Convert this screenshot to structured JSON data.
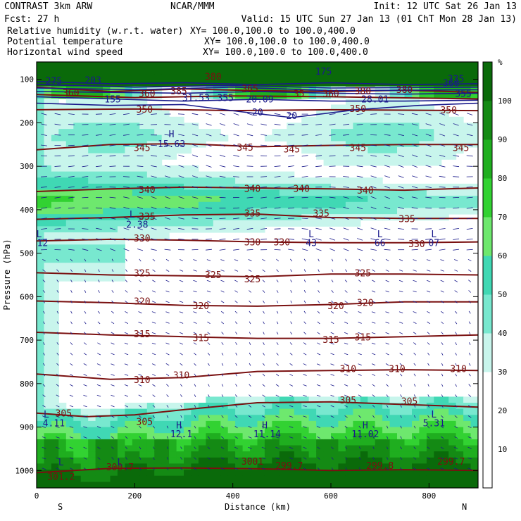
{
  "header": {
    "model": "CONTRAST  3km ARW",
    "center": "NCAR/MMM",
    "init": "Init: 12 UTC Sat 26 Jan 13",
    "fcst": "Fcst:   27 h",
    "valid": "Valid: 15 UTC Sun 27 Jan 13 (01 ChT Mon 28 Jan 13)",
    "fields": [
      {
        "name": "Relative humidity (w.r.t. water)",
        "xy": "XY= 100.0,100.0 to 100.0,400.0",
        "color": "#000000"
      },
      {
        "name": "Potential temperature",
        "xy": "XY= 100.0,100.0 to 100.0,400.0",
        "color": "#8b1a1a"
      },
      {
        "name": "Horizontal wind speed",
        "xy": "XY= 100.0,100.0 to 100.0,400.0",
        "color": "#1a1a8b"
      }
    ]
  },
  "colors": {
    "theta": "#7a1010",
    "wind": "#1a1a8b",
    "rh": [
      "#ffffff",
      "#ffffff",
      "#ffffff",
      "#c8f5ec",
      "#78e8cf",
      "#40d8b4",
      "#6ee86e",
      "#32d232",
      "#1fae1f",
      "#148a14",
      "#0a6a0a"
    ]
  },
  "colorbar": {
    "unit": "%",
    "ticks": [
      "10",
      "20",
      "30",
      "40",
      "50",
      "60",
      "70",
      "80",
      "90",
      "100"
    ]
  },
  "chart_data": {
    "type": "heatmap",
    "title": "",
    "xlabel": "Distance (km)",
    "ylabel": "Pressure (hPa)",
    "xlim": [
      0,
      900
    ],
    "ylim": [
      1040,
      60
    ],
    "x_ticks": [
      "0",
      "200",
      "400",
      "600",
      "800"
    ],
    "x_tick_values": [
      0,
      200,
      400,
      600,
      800
    ],
    "y_ticks": [
      "100",
      "200",
      "300",
      "400",
      "500",
      "600",
      "700",
      "800",
      "900",
      "1000"
    ],
    "y_tick_values": [
      100,
      200,
      300,
      400,
      500,
      600,
      700,
      800,
      900,
      1000
    ],
    "end_labels": {
      "left": "S",
      "right": "N"
    },
    "theta_contours": [
      {
        "level": "360",
        "points": [
          [
            0,
            118
          ],
          [
            150,
            128
          ],
          [
            300,
            122
          ],
          [
            450,
            126
          ],
          [
            600,
            128
          ],
          [
            750,
            125
          ],
          [
            900,
            130
          ]
        ]
      },
      {
        "level": "355",
        "points": [
          [
            0,
            135
          ],
          [
            200,
            142
          ],
          [
            400,
            138
          ],
          [
            600,
            140
          ],
          [
            900,
            145
          ]
        ]
      },
      {
        "level": "350",
        "points": [
          [
            0,
            170
          ],
          [
            200,
            168
          ],
          [
            400,
            172
          ],
          [
            600,
            170
          ],
          [
            900,
            172
          ]
        ]
      },
      {
        "level": "345",
        "points": [
          [
            0,
            262
          ],
          [
            150,
            250
          ],
          [
            300,
            248
          ],
          [
            450,
            255
          ],
          [
            600,
            252
          ],
          [
            750,
            250
          ],
          [
            900,
            250
          ]
        ]
      },
      {
        "level": "340",
        "points": [
          [
            0,
            358
          ],
          [
            150,
            352
          ],
          [
            300,
            348
          ],
          [
            450,
            350
          ],
          [
            600,
            352
          ],
          [
            750,
            355
          ],
          [
            900,
            350
          ]
        ]
      },
      {
        "level": "335",
        "points": [
          [
            0,
            422
          ],
          [
            150,
            418
          ],
          [
            300,
            412
          ],
          [
            450,
            410
          ],
          [
            600,
            418
          ],
          [
            750,
            420
          ],
          [
            900,
            420
          ]
        ]
      },
      {
        "level": "330",
        "points": [
          [
            0,
            472
          ],
          [
            150,
            468
          ],
          [
            300,
            470
          ],
          [
            450,
            474
          ],
          [
            600,
            476
          ],
          [
            750,
            476
          ],
          [
            900,
            474
          ]
        ]
      },
      {
        "level": "325",
        "points": [
          [
            0,
            545
          ],
          [
            150,
            550
          ],
          [
            300,
            552
          ],
          [
            450,
            554
          ],
          [
            600,
            548
          ],
          [
            750,
            548
          ],
          [
            900,
            550
          ]
        ]
      },
      {
        "level": "320",
        "points": [
          [
            0,
            610
          ],
          [
            150,
            614
          ],
          [
            300,
            620
          ],
          [
            450,
            622
          ],
          [
            600,
            618
          ],
          [
            750,
            612
          ],
          [
            900,
            612
          ]
        ]
      },
      {
        "level": "315",
        "points": [
          [
            0,
            682
          ],
          [
            150,
            688
          ],
          [
            300,
            692
          ],
          [
            450,
            696
          ],
          [
            600,
            696
          ],
          [
            750,
            692
          ],
          [
            900,
            688
          ]
        ]
      },
      {
        "level": "310",
        "points": [
          [
            0,
            778
          ],
          [
            150,
            790
          ],
          [
            300,
            786
          ],
          [
            450,
            772
          ],
          [
            600,
            770
          ],
          [
            750,
            768
          ],
          [
            900,
            770
          ]
        ]
      },
      {
        "level": "305",
        "points": [
          [
            0,
            868
          ],
          [
            100,
            876
          ],
          [
            200,
            872
          ],
          [
            300,
            860
          ],
          [
            450,
            844
          ],
          [
            600,
            842
          ],
          [
            750,
            848
          ],
          [
            900,
            854
          ]
        ]
      },
      {
        "level": "300",
        "points": [
          [
            0,
            1005
          ],
          [
            150,
            995
          ],
          [
            300,
            994
          ],
          [
            450,
            996
          ],
          [
            600,
            1000
          ],
          [
            750,
            998
          ],
          [
            900,
            1000
          ]
        ]
      }
    ],
    "theta_labels": [
      {
        "text": "360",
        "x": 70,
        "p": 135
      },
      {
        "text": "360",
        "x": 225,
        "p": 137
      },
      {
        "text": "385",
        "x": 290,
        "p": 131
      },
      {
        "text": "380",
        "x": 360,
        "p": 98
      },
      {
        "text": "365",
        "x": 435,
        "p": 126
      },
      {
        "text": "35",
        "x": 535,
        "p": 137
      },
      {
        "text": "360",
        "x": 600,
        "p": 137
      },
      {
        "text": "380",
        "x": 665,
        "p": 131
      },
      {
        "text": "380",
        "x": 750,
        "p": 128
      },
      {
        "text": "350",
        "x": 220,
        "p": 173
      },
      {
        "text": "350",
        "x": 655,
        "p": 172
      },
      {
        "text": "350",
        "x": 840,
        "p": 175
      },
      {
        "text": "345",
        "x": 215,
        "p": 262
      },
      {
        "text": "345",
        "x": 425,
        "p": 261
      },
      {
        "text": "345",
        "x": 520,
        "p": 265
      },
      {
        "text": "345",
        "x": 655,
        "p": 262
      },
      {
        "text": "345",
        "x": 865,
        "p": 262
      },
      {
        "text": "340",
        "x": 225,
        "p": 358
      },
      {
        "text": "340",
        "x": 440,
        "p": 356
      },
      {
        "text": "340",
        "x": 540,
        "p": 356
      },
      {
        "text": "340",
        "x": 670,
        "p": 360
      },
      {
        "text": "335",
        "x": 225,
        "p": 420
      },
      {
        "text": "335",
        "x": 440,
        "p": 412
      },
      {
        "text": "335",
        "x": 580,
        "p": 412
      },
      {
        "text": "335",
        "x": 755,
        "p": 425
      },
      {
        "text": "330",
        "x": 215,
        "p": 470
      },
      {
        "text": "330",
        "x": 440,
        "p": 479
      },
      {
        "text": "330",
        "x": 500,
        "p": 479
      },
      {
        "text": "330",
        "x": 775,
        "p": 483
      },
      {
        "text": "325",
        "x": 215,
        "p": 550
      },
      {
        "text": "325",
        "x": 360,
        "p": 554
      },
      {
        "text": "325",
        "x": 440,
        "p": 564
      },
      {
        "text": "325",
        "x": 665,
        "p": 550
      },
      {
        "text": "320",
        "x": 215,
        "p": 615
      },
      {
        "text": "320",
        "x": 335,
        "p": 625
      },
      {
        "text": "320",
        "x": 610,
        "p": 625
      },
      {
        "text": "320",
        "x": 670,
        "p": 618
      },
      {
        "text": "315",
        "x": 215,
        "p": 690
      },
      {
        "text": "315",
        "x": 335,
        "p": 699
      },
      {
        "text": "315",
        "x": 600,
        "p": 703
      },
      {
        "text": "315",
        "x": 665,
        "p": 697
      },
      {
        "text": "310",
        "x": 215,
        "p": 795
      },
      {
        "text": "310",
        "x": 295,
        "p": 785
      },
      {
        "text": "310",
        "x": 635,
        "p": 770
      },
      {
        "text": "310",
        "x": 735,
        "p": 770
      },
      {
        "text": "310",
        "x": 860,
        "p": 770
      },
      {
        "text": "305",
        "x": 55,
        "p": 872
      },
      {
        "text": "305",
        "x": 220,
        "p": 892
      },
      {
        "text": "305",
        "x": 635,
        "p": 842
      },
      {
        "text": "305",
        "x": 760,
        "p": 845
      },
      {
        "text": "3001",
        "x": 440,
        "p": 983
      },
      {
        "text": "299.7",
        "x": 515,
        "p": 993
      },
      {
        "text": "299.8",
        "x": 700,
        "p": 993
      },
      {
        "text": "299.7",
        "x": 845,
        "p": 983
      },
      {
        "text": "300.7",
        "x": 170,
        "p": 996
      },
      {
        "text": "301.2",
        "x": 50,
        "p": 1018
      }
    ],
    "wind_contours": [
      {
        "points": [
          [
            0,
            105
          ],
          [
            150,
            110
          ],
          [
            300,
            108
          ],
          [
            450,
            112
          ],
          [
            600,
            108
          ],
          [
            750,
            112
          ],
          [
            900,
            110
          ]
        ]
      },
      {
        "points": [
          [
            0,
            112
          ],
          [
            200,
            118
          ],
          [
            400,
            114
          ],
          [
            600,
            120
          ],
          [
            900,
            118
          ]
        ]
      },
      {
        "points": [
          [
            0,
            120
          ],
          [
            200,
            124
          ],
          [
            400,
            118
          ],
          [
            600,
            126
          ],
          [
            900,
            124
          ]
        ]
      },
      {
        "points": [
          [
            0,
            128
          ],
          [
            150,
            130
          ],
          [
            300,
            132
          ],
          [
            450,
            128
          ],
          [
            600,
            132
          ],
          [
            750,
            134
          ],
          [
            900,
            132
          ]
        ]
      },
      {
        "points": [
          [
            0,
            140
          ],
          [
            150,
            145
          ],
          [
            300,
            150
          ],
          [
            450,
            146
          ],
          [
            600,
            150
          ],
          [
            750,
            150
          ],
          [
            900,
            148
          ]
        ]
      },
      {
        "points": [
          [
            0,
            155
          ],
          [
            150,
            160
          ],
          [
            300,
            158
          ],
          [
            420,
            175
          ],
          [
            520,
            188
          ],
          [
            650,
            170
          ],
          [
            780,
            160
          ],
          [
            900,
            155
          ]
        ]
      }
    ],
    "wind_labels": [
      {
        "text": "275",
        "x": 35,
        "p": 108
      },
      {
        "text": "203",
        "x": 115,
        "p": 106
      },
      {
        "text": "175",
        "x": 585,
        "p": 86
      },
      {
        "text": "335",
        "x": 855,
        "p": 103
      },
      {
        "text": "155",
        "x": 155,
        "p": 150
      },
      {
        "text": "31.53",
        "x": 325,
        "p": 147
      },
      {
        "text": "355",
        "x": 385,
        "p": 147
      },
      {
        "text": "20.09",
        "x": 455,
        "p": 150
      },
      {
        "text": "28.01",
        "x": 690,
        "p": 150
      },
      {
        "text": "355",
        "x": 870,
        "p": 137
      },
      {
        "text": "-20",
        "x": 445,
        "p": 180
      },
      {
        "text": "20",
        "x": 520,
        "p": 188
      },
      {
        "text": "360",
        "x": 845,
        "p": 113
      }
    ],
    "extrema": [
      {
        "text": "H",
        "x": 275,
        "p": 230
      },
      {
        "text": "15.63",
        "x": 275,
        "p": 253
      },
      {
        "text": "L",
        "x": 5,
        "p": 460
      },
      {
        "text": "12",
        "x": 12,
        "p": 480
      },
      {
        "text": "L",
        "x": 195,
        "p": 415
      },
      {
        "text": "2.38",
        "x": 205,
        "p": 438
      },
      {
        "text": "L",
        "x": 560,
        "p": 460
      },
      {
        "text": "43",
        "x": 560,
        "p": 480
      },
      {
        "text": "L",
        "x": 700,
        "p": 460
      },
      {
        "text": "66",
        "x": 700,
        "p": 480
      },
      {
        "text": "L",
        "x": 810,
        "p": 460
      },
      {
        "text": "07",
        "x": 810,
        "p": 480
      },
      {
        "text": "L",
        "x": 20,
        "p": 875
      },
      {
        "text": "4.11",
        "x": 35,
        "p": 895
      },
      {
        "text": "H",
        "x": 290,
        "p": 900
      },
      {
        "text": "12.1",
        "x": 295,
        "p": 920
      },
      {
        "text": "H",
        "x": 465,
        "p": 900
      },
      {
        "text": "11.14",
        "x": 470,
        "p": 920
      },
      {
        "text": "H",
        "x": 670,
        "p": 900
      },
      {
        "text": "11.02",
        "x": 670,
        "p": 920
      },
      {
        "text": "L",
        "x": 810,
        "p": 875
      },
      {
        "text": "5.31",
        "x": 810,
        "p": 895
      },
      {
        "text": "L",
        "x": 50,
        "p": 985
      },
      {
        "text": "L",
        "x": 170,
        "p": 985
      }
    ]
  }
}
